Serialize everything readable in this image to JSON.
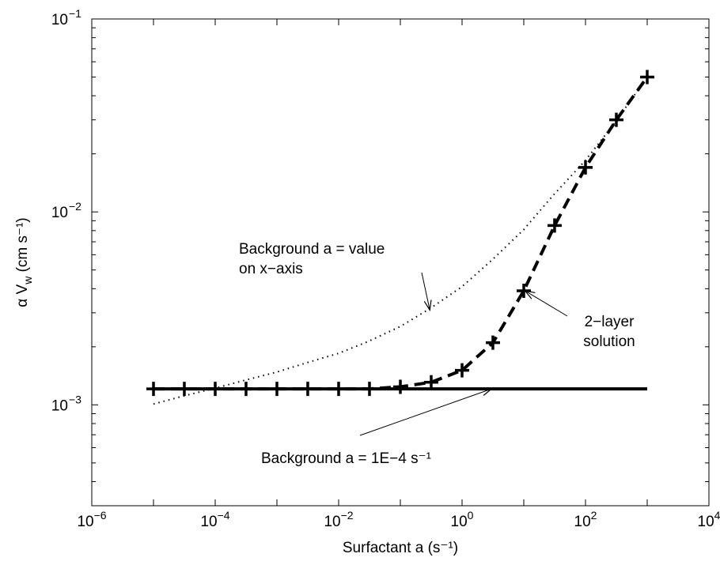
{
  "chart_data": {
    "type": "line",
    "xlabel": "Surfactant a (s⁻¹)",
    "ylabel": "α V",
    "ylabel_sub": "w",
    "ylabel_unit": " (cm s⁻¹)",
    "x_scale": "log",
    "y_scale": "log",
    "xlim": [
      1e-06,
      10000.0
    ],
    "ylim": [
      0.0003,
      0.1
    ],
    "x_tick_exponents": [
      -6,
      -4,
      -2,
      0,
      2,
      4
    ],
    "y_tick_exponents": [
      -3,
      -2,
      -1
    ],
    "grid": false,
    "series": [
      {
        "style": "solid",
        "x": [
          1e-05,
          1000
        ],
        "y": [
          0.00121,
          0.00121
        ]
      },
      {
        "style": "dotted",
        "x": [
          1e-05,
          3e-05,
          0.0001,
          0.0003,
          0.001,
          0.003,
          0.01,
          0.03,
          0.1,
          0.3,
          1,
          3,
          10,
          30,
          100,
          300,
          1000
        ],
        "y": [
          0.00101,
          0.00111,
          0.00122,
          0.00134,
          0.00148,
          0.00165,
          0.00185,
          0.00213,
          0.00255,
          0.00315,
          0.0041,
          0.0056,
          0.0081,
          0.0122,
          0.0185,
          0.029,
          0.05
        ]
      },
      {
        "style": "dashed-plus",
        "x": [
          1e-05,
          3.16e-05,
          0.0001,
          0.000316,
          0.001,
          0.00316,
          0.01,
          0.0316,
          0.1,
          0.316,
          1,
          3.16,
          10,
          31.6,
          100,
          316,
          1000
        ],
        "y": [
          0.00121,
          0.00121,
          0.00121,
          0.00121,
          0.00121,
          0.00121,
          0.00121,
          0.00121,
          0.00124,
          0.00131,
          0.00151,
          0.0021,
          0.0039,
          0.0085,
          0.017,
          0.03,
          0.05
        ]
      }
    ],
    "annotations": [
      {
        "lines": [
          "Background a = value",
          "on x−axis"
        ],
        "arrow_to": [
          0.3,
          0.0031
        ]
      },
      {
        "lines": [
          "2−layer",
          "solution"
        ],
        "arrow_to": [
          10.5,
          0.0039
        ]
      },
      {
        "lines": [
          "Background a = 1E−4 s⁻¹"
        ],
        "arrow_to": [
          3,
          0.00121
        ]
      }
    ]
  }
}
